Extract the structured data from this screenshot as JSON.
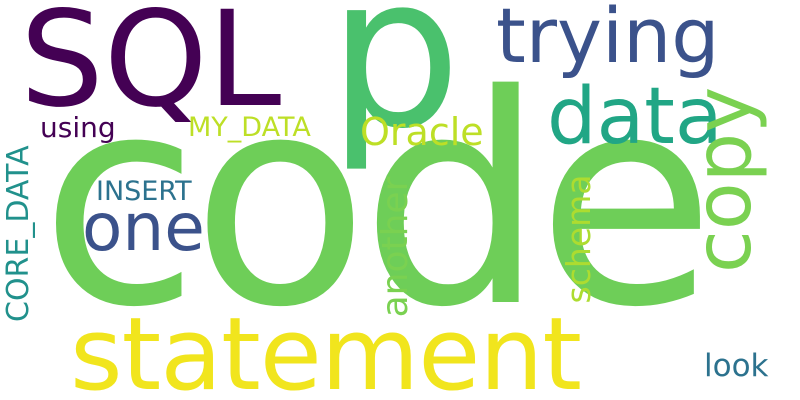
{
  "words": [
    {
      "id": "code",
      "text": "code",
      "color": "#6ece58"
    },
    {
      "id": "p",
      "text": "p",
      "color": "#4ac16d"
    },
    {
      "id": "sql",
      "text": "SQL",
      "color": "#440154"
    },
    {
      "id": "statement",
      "text": "statement",
      "color": "#f1e51d"
    },
    {
      "id": "trying",
      "text": "trying",
      "color": "#3b528b"
    },
    {
      "id": "data",
      "text": "data",
      "color": "#21a685"
    },
    {
      "id": "copy",
      "text": "copy",
      "color": "#7ad151"
    },
    {
      "id": "one",
      "text": "one",
      "color": "#3b528b"
    },
    {
      "id": "oracle",
      "text": "Oracle",
      "color": "#bddf26"
    },
    {
      "id": "my_data",
      "text": "MY_DATA",
      "color": "#bddf26"
    },
    {
      "id": "using",
      "text": "using",
      "color": "#440154"
    },
    {
      "id": "insert",
      "text": "INSERT",
      "color": "#2c728e"
    },
    {
      "id": "core_data",
      "text": "CORE_DATA",
      "color": "#21918c"
    },
    {
      "id": "another",
      "text": "another",
      "color": "#7ad151"
    },
    {
      "id": "schema",
      "text": "schema",
      "color": "#addc30"
    },
    {
      "id": "look",
      "text": "look",
      "color": "#2c728e"
    }
  ]
}
